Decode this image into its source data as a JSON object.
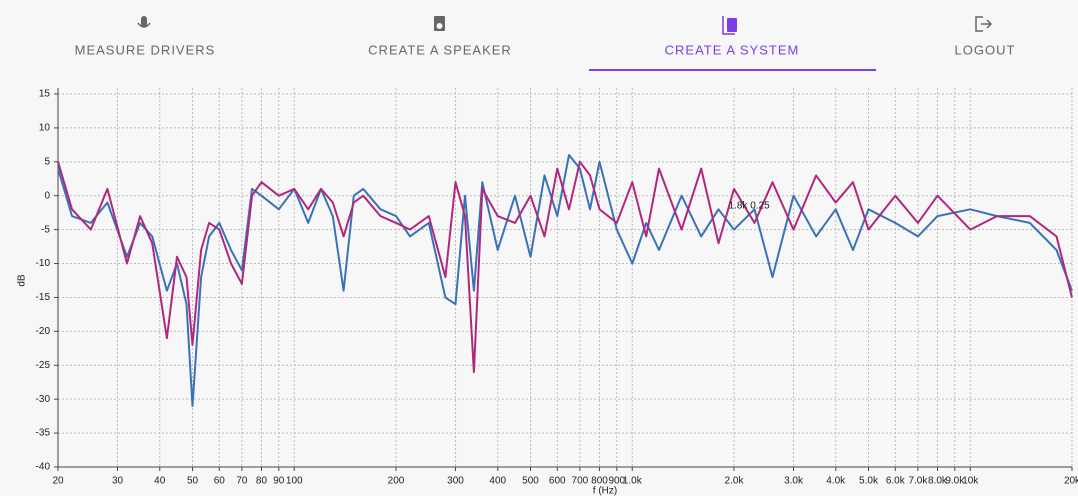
{
  "nav": {
    "tabs": [
      "MEASURE DRIVERS",
      "CREATE A SPEAKER",
      "CREATE A SYSTEM",
      "LOGOUT"
    ],
    "active": 2
  },
  "chart_data": {
    "type": "line",
    "xlabel": "f (Hz)",
    "ylabel": "dB",
    "xscale": "log",
    "grid": true,
    "xlim": [
      20,
      20000
    ],
    "ylim": [
      -40,
      15
    ],
    "xticks": [
      20,
      30,
      40,
      50,
      60,
      70,
      80,
      90,
      100,
      200,
      300,
      400,
      500,
      600,
      700,
      800,
      900,
      {
        "value": 1000,
        "label": "1.0k"
      },
      {
        "value": 2000,
        "label": "2.0k"
      },
      {
        "value": 3000,
        "label": "3.0k"
      },
      {
        "value": 4000,
        "label": "4.0k"
      },
      {
        "value": 5000,
        "label": "5.0k"
      },
      {
        "value": 6000,
        "label": "6.0k"
      },
      {
        "value": 7000,
        "label": "7.0k"
      },
      {
        "value": 8000,
        "label": "8.0k"
      },
      {
        "value": 9000,
        "label": "9.0k"
      },
      {
        "value": 10000,
        "label": "10k"
      },
      {
        "value": 20000,
        "label": "20k"
      }
    ],
    "yticks": [
      -40,
      -35,
      -30,
      -25,
      -20,
      -15,
      -10,
      -5,
      0,
      5,
      10,
      15
    ],
    "x": [
      20,
      22,
      25,
      28,
      32,
      35,
      38,
      42,
      45,
      48,
      50,
      53,
      56,
      60,
      65,
      70,
      75,
      80,
      90,
      100,
      110,
      120,
      130,
      140,
      150,
      160,
      180,
      200,
      220,
      250,
      280,
      300,
      320,
      340,
      360,
      400,
      450,
      500,
      550,
      600,
      650,
      700,
      750,
      800,
      900,
      1000,
      1100,
      1200,
      1400,
      1600,
      1800,
      2000,
      2300,
      2600,
      3000,
      3500,
      4000,
      4500,
      5000,
      6000,
      7000,
      8000,
      10000,
      12000,
      15000,
      18000,
      20000
    ],
    "series": [
      {
        "name": null,
        "color": "#3a72b8",
        "values": [
          4,
          -3,
          -4,
          -1,
          -9,
          -4,
          -6,
          -14,
          -10,
          -16,
          -31,
          -12,
          -6,
          -4,
          -8,
          -11,
          1,
          0,
          -2,
          1,
          -4,
          1,
          -3,
          -14,
          0,
          1,
          -2,
          -3,
          -6,
          -4,
          -15,
          -16,
          0,
          -14,
          2,
          -8,
          0,
          -9,
          3,
          -3,
          6,
          4,
          -2,
          5,
          -5,
          -10,
          -4,
          -8,
          0,
          -6,
          -2,
          -5,
          -2,
          -12,
          0,
          -6,
          -2,
          -8,
          -2,
          -4,
          -6,
          -3,
          -2,
          -3,
          -4,
          -8,
          -14
        ]
      },
      {
        "name": null,
        "color": "#b0287e",
        "values": [
          5,
          -2,
          -5,
          1,
          -10,
          -3,
          -7,
          -21,
          -9,
          -12,
          -22,
          -8,
          -4,
          -5,
          -10,
          -13,
          0,
          2,
          0,
          1,
          -2,
          1,
          -1,
          -6,
          -1,
          0,
          -3,
          -4,
          -5,
          -3,
          -12,
          2,
          -3,
          -26,
          1,
          -3,
          -4,
          0,
          -6,
          4,
          -2,
          5,
          3,
          -2,
          -4,
          2,
          -6,
          4,
          -5,
          4,
          -7,
          1,
          -4,
          2,
          -5,
          3,
          -1,
          2,
          -5,
          0,
          -4,
          0,
          -5,
          -3,
          -3,
          -6,
          -15
        ]
      }
    ],
    "annotation": {
      "text": "1.8k 0.25",
      "x": 1800,
      "y": 0.25
    }
  }
}
